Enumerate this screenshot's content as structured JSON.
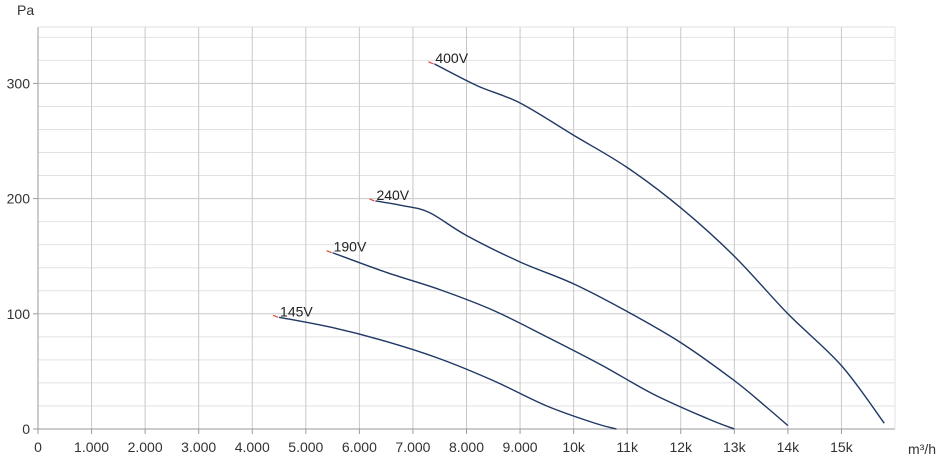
{
  "chart_data": {
    "type": "line",
    "xlabel": "m³/h",
    "ylabel": "Pa",
    "xlim": [
      0,
      16000
    ],
    "ylim": [
      0,
      350
    ],
    "x_ticks": [
      {
        "value": 0,
        "label": "0"
      },
      {
        "value": 1000,
        "label": "1.000"
      },
      {
        "value": 2000,
        "label": "2.000"
      },
      {
        "value": 3000,
        "label": "3.000"
      },
      {
        "value": 4000,
        "label": "4.000"
      },
      {
        "value": 5000,
        "label": "5.000"
      },
      {
        "value": 6000,
        "label": "6.000"
      },
      {
        "value": 7000,
        "label": "7.000"
      },
      {
        "value": 8000,
        "label": "8.000"
      },
      {
        "value": 9000,
        "label": "9.000"
      },
      {
        "value": 10000,
        "label": "10k"
      },
      {
        "value": 11000,
        "label": "11k"
      },
      {
        "value": 12000,
        "label": "12k"
      },
      {
        "value": 13000,
        "label": "13k"
      },
      {
        "value": 14000,
        "label": "14k"
      },
      {
        "value": 15000,
        "label": "15k"
      }
    ],
    "y_ticks": [
      {
        "value": 0,
        "label": "0"
      },
      {
        "value": 100,
        "label": "100"
      },
      {
        "value": 200,
        "label": "200"
      },
      {
        "value": 300,
        "label": "300"
      }
    ],
    "grid": true,
    "series": [
      {
        "name": "145V",
        "color": "#1f3864",
        "x": [
          4500,
          5500,
          6500,
          7500,
          8500,
          9500,
          10400,
          10800
        ],
        "y": [
          97,
          88,
          76,
          61,
          42,
          20,
          5,
          0
        ]
      },
      {
        "name": "190V",
        "color": "#1f3864",
        "x": [
          5500,
          6500,
          7500,
          8500,
          9500,
          10500,
          11500,
          12500,
          13000
        ],
        "y": [
          153,
          136,
          121,
          103,
          80,
          56,
          30,
          9,
          0
        ]
      },
      {
        "name": "240V",
        "color": "#1f3864",
        "x": [
          6300,
          6800,
          7300,
          8000,
          9000,
          10000,
          11000,
          12000,
          13000,
          13600,
          14000
        ],
        "y": [
          198,
          194,
          188,
          168,
          145,
          126,
          102,
          75,
          42,
          19,
          3
        ]
      },
      {
        "name": "400V",
        "color": "#1f3864",
        "x": [
          7400,
          8200,
          9000,
          10000,
          11000,
          12000,
          13000,
          14000,
          15000,
          15800
        ],
        "y": [
          317,
          298,
          283,
          255,
          227,
          192,
          150,
          100,
          55,
          5
        ]
      }
    ]
  }
}
